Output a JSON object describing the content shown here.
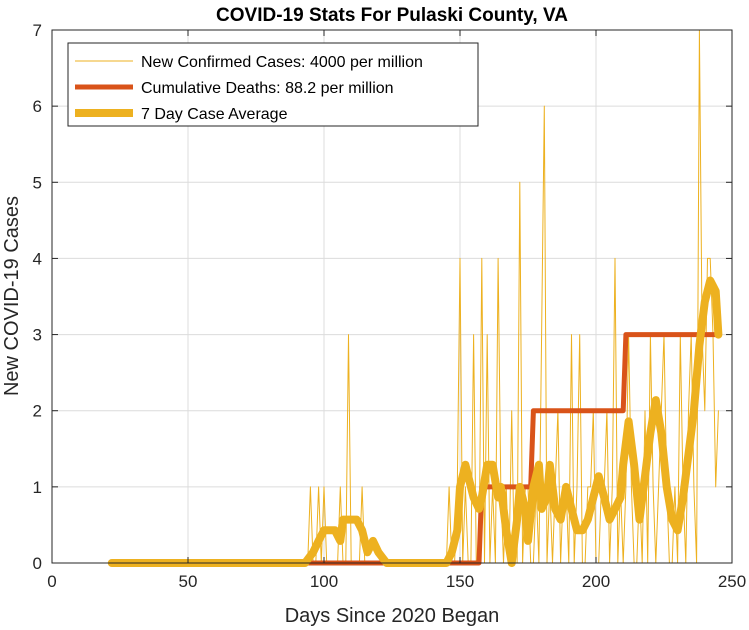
{
  "chart_data": {
    "type": "line",
    "title": "COVID-19 Stats For Pulaski County, VA",
    "xlabel": "Days Since 2020 Began",
    "ylabel": "New COVID-19 Cases",
    "xlim": [
      0,
      250
    ],
    "ylim": [
      0,
      7
    ],
    "xticks": [
      0,
      50,
      100,
      150,
      200,
      250
    ],
    "yticks": [
      0,
      1,
      2,
      3,
      4,
      5,
      6,
      7
    ],
    "grid": true,
    "legend_position": "top-left",
    "series": [
      {
        "name": "New Confirmed Cases: 4000 per million",
        "color": "#EDB120",
        "line_style": "thin",
        "x": [
          22,
          94,
          95,
          96,
          97,
          98,
          99,
          100,
          101,
          102,
          103,
          104,
          105,
          106,
          107,
          108,
          109,
          110,
          111,
          112,
          113,
          114,
          115,
          116,
          117,
          118,
          119,
          120,
          121,
          145,
          146,
          147,
          148,
          149,
          150,
          151,
          152,
          153,
          154,
          155,
          156,
          157,
          158,
          159,
          160,
          161,
          162,
          163,
          164,
          165,
          166,
          167,
          168,
          169,
          170,
          171,
          172,
          173,
          174,
          175,
          176,
          177,
          178,
          179,
          180,
          181,
          182,
          183,
          184,
          185,
          186,
          187,
          188,
          189,
          190,
          191,
          192,
          193,
          194,
          195,
          196,
          197,
          198,
          199,
          200,
          201,
          202,
          203,
          204,
          205,
          206,
          207,
          208,
          209,
          210,
          211,
          212,
          213,
          214,
          215,
          216,
          217,
          218,
          219,
          220,
          221,
          222,
          223,
          224,
          225,
          226,
          227,
          228,
          229,
          230,
          231,
          232,
          233,
          234,
          235,
          236,
          237,
          238,
          239,
          240,
          241,
          242,
          243,
          244,
          245
        ],
        "y": [
          0,
          0,
          1,
          0,
          0,
          1,
          0,
          1,
          0,
          0,
          0,
          0,
          0,
          1,
          0,
          0,
          3,
          0,
          0,
          0,
          0,
          1,
          0,
          0,
          0,
          0,
          0,
          0,
          0,
          0,
          1,
          0,
          0,
          1,
          4,
          0,
          1,
          0,
          0,
          3,
          0,
          0,
          4,
          0,
          3,
          0,
          1,
          0,
          4,
          1,
          0,
          1,
          0,
          2,
          0,
          0,
          5,
          0,
          1,
          1,
          0,
          0,
          1,
          0,
          3,
          6,
          0,
          1,
          0,
          1,
          2,
          0,
          1,
          1,
          0,
          3,
          0,
          1,
          3,
          0,
          0,
          1,
          1,
          2,
          0,
          0,
          1,
          1,
          2,
          0,
          1,
          4,
          0,
          1,
          0,
          1,
          3,
          1,
          0,
          0,
          1,
          0,
          2,
          0,
          3,
          1,
          0,
          1,
          2,
          3,
          1,
          0,
          0,
          1,
          0,
          3,
          1,
          0,
          2,
          3,
          1,
          0,
          7,
          3,
          2,
          4,
          4,
          3,
          1,
          2
        ]
      },
      {
        "name": "Cumulative Deaths: 88.2 per million",
        "color": "#D95319",
        "line_style": "thick",
        "x": [
          22,
          157,
          158,
          176,
          177,
          210,
          211,
          245
        ],
        "y": [
          0,
          0,
          1,
          1,
          2,
          2,
          3,
          3
        ]
      },
      {
        "name": "7 Day Case Average",
        "color": "#EDB120",
        "line_style": "thickest",
        "x": [
          22,
          93,
          96,
          98,
          100,
          102,
          104,
          106,
          107,
          110,
          112,
          114,
          116,
          118,
          120,
          123,
          145,
          147,
          149,
          150,
          152,
          153,
          155,
          157,
          158,
          160,
          162,
          164,
          165,
          167,
          169,
          171,
          172,
          174,
          175,
          177,
          179,
          180,
          182,
          183,
          185,
          187,
          189,
          191,
          193,
          195,
          197,
          199,
          201,
          203,
          205,
          207,
          209,
          210,
          212,
          214,
          216,
          218,
          220,
          222,
          224,
          226,
          228,
          230,
          232,
          234,
          236,
          238,
          240,
          242,
          244,
          245
        ],
        "y": [
          0,
          0,
          0.14,
          0.29,
          0.43,
          0.43,
          0.43,
          0.29,
          0.57,
          0.57,
          0.57,
          0.43,
          0.14,
          0.29,
          0.14,
          0,
          0,
          0.14,
          0.43,
          1.0,
          1.29,
          1.14,
          0.86,
          0.71,
          0.86,
          1.29,
          1.29,
          0.86,
          1.0,
          0.43,
          0.0,
          0.57,
          1.0,
          0.71,
          0.29,
          1.0,
          1.29,
          0.71,
          0.86,
          1.29,
          0.71,
          0.57,
          1.0,
          0.71,
          0.43,
          0.43,
          0.57,
          0.86,
          1.14,
          0.86,
          0.57,
          0.71,
          0.86,
          1.29,
          1.86,
          1.29,
          0.57,
          1.14,
          1.71,
          2.14,
          1.71,
          1.0,
          0.57,
          0.43,
          0.86,
          1.43,
          2.0,
          2.86,
          3.43,
          3.71,
          3.57,
          3.0
        ]
      }
    ]
  }
}
